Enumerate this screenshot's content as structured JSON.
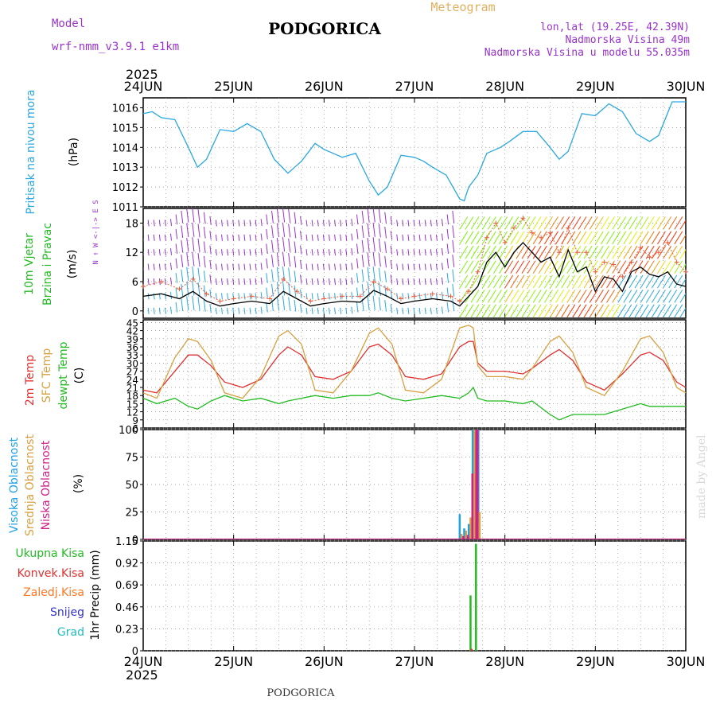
{
  "header": {
    "model_label": "Model",
    "model_name": "wrf-nmm_v3.9.1  e1km",
    "title": "PODGORICA",
    "meteogram": "Meteogram",
    "lonlat": "lon,lat (19.25E, 42.39N)",
    "elevation": "Nadmorska Visina 49m",
    "model_elevation": "Nadmorska Visina u modelu 55.035m",
    "year_top": "2025",
    "year_bottom": "2025",
    "footer": "PODGORICA",
    "watermark": "made by Angel"
  },
  "colors": {
    "pressure": "#2aa8e0",
    "wind_label": "#22bb22",
    "purple": "#9933cc",
    "t2m": "#e03030",
    "tsfc": "#d8a040",
    "dewpt": "#22bb22",
    "high_cloud": "#1fa0e8",
    "mid_cloud": "#d8a040",
    "low_cloud": "#cc2288",
    "total_rain": "#22bb22",
    "conv_rain": "#e03030",
    "frz_rain": "#ff7722",
    "snow": "#3333cc",
    "hail": "#22bbbb",
    "header_purple": "#9933cc",
    "header_gold": "#e0b060"
  },
  "chart_data": [
    {
      "type": "line",
      "id": "pressure",
      "ylabel_lines": [
        "Pritisak na nivou mora",
        "(hPa)"
      ],
      "x_tick_labels": [
        "24JUN",
        "25JUN",
        "26JUN",
        "27JUN",
        "28JUN",
        "29JUN",
        "30JUN"
      ],
      "ylim": [
        1011,
        1016.5
      ],
      "yticks": [
        1011,
        1012,
        1013,
        1014,
        1015,
        1016
      ],
      "grid": true,
      "series": [
        {
          "x": [
            0,
            0.1,
            0.2,
            0.35,
            0.5,
            0.6,
            0.7,
            0.85,
            1.0,
            1.15,
            1.3,
            1.45,
            1.6,
            1.75,
            1.9,
            2.0,
            2.1,
            2.2,
            2.35,
            2.5,
            2.6,
            2.7,
            2.85,
            3.0,
            3.1,
            3.2,
            3.35,
            3.5,
            3.55,
            3.6,
            3.7,
            3.8,
            3.95,
            4.05,
            4.2,
            4.35,
            4.5,
            4.6,
            4.7,
            4.85,
            5.0,
            5.15,
            5.3,
            5.45,
            5.6,
            5.7,
            5.85,
            6.0
          ],
          "y": [
            1015.7,
            1015.8,
            1015.5,
            1015.4,
            1014.0,
            1013.0,
            1013.4,
            1014.9,
            1014.8,
            1015.2,
            1014.8,
            1013.4,
            1012.7,
            1013.3,
            1014.2,
            1013.9,
            1013.7,
            1013.5,
            1013.7,
            1012.3,
            1011.6,
            1012.0,
            1013.6,
            1013.5,
            1013.3,
            1013.0,
            1012.6,
            1011.4,
            1011.3,
            1012.0,
            1012.6,
            1013.7,
            1014.0,
            1014.3,
            1014.8,
            1014.8,
            1014.0,
            1013.4,
            1013.8,
            1015.7,
            1015.6,
            1016.2,
            1015.8,
            1014.7,
            1014.3,
            1014.6,
            1016.3,
            1016.3
          ]
        }
      ]
    },
    {
      "type": "line",
      "id": "wind",
      "ylabel_lines": [
        "10m Vjetar",
        "Brzina i Pravac",
        "(m/s)"
      ],
      "compass": "N ↑  W <-|-> E  S",
      "ylim": [
        -1.5,
        21
      ],
      "yticks": [
        0,
        6,
        12,
        18
      ],
      "grid": true,
      "series": [
        {
          "name": "speed",
          "x": [
            0,
            0.2,
            0.4,
            0.55,
            0.7,
            0.85,
            1.0,
            1.2,
            1.4,
            1.55,
            1.7,
            1.85,
            2.0,
            2.2,
            2.4,
            2.55,
            2.7,
            2.85,
            3.0,
            3.2,
            3.4,
            3.5,
            3.6,
            3.7,
            3.8,
            3.9,
            4.0,
            4.1,
            4.2,
            4.3,
            4.4,
            4.5,
            4.6,
            4.7,
            4.8,
            4.9,
            5.0,
            5.1,
            5.2,
            5.3,
            5.4,
            5.5,
            5.6,
            5.7,
            5.8,
            5.9,
            6.0
          ],
          "y": [
            3.0,
            3.5,
            2.5,
            4.0,
            2.0,
            1.0,
            1.5,
            2.0,
            1.5,
            4.0,
            2.5,
            1.0,
            1.5,
            2.0,
            1.8,
            4.2,
            3.0,
            1.5,
            2.0,
            2.5,
            2.0,
            1.0,
            3.0,
            5.0,
            10.0,
            12.0,
            9.0,
            12.0,
            14.0,
            12.0,
            10.0,
            11.0,
            7.0,
            12.5,
            8.0,
            9.0,
            4.0,
            7.0,
            6.5,
            4.0,
            8.0,
            9.0,
            7.5,
            7.0,
            8.0,
            5.5,
            5.0
          ]
        },
        {
          "name": "gust",
          "x": [
            0,
            0.2,
            0.4,
            0.55,
            0.7,
            0.85,
            1.0,
            1.2,
            1.4,
            1.55,
            1.7,
            1.85,
            2.0,
            2.2,
            2.4,
            2.55,
            2.7,
            2.85,
            3.0,
            3.2,
            3.4,
            3.5,
            3.6,
            3.7,
            3.8,
            3.9,
            4.0,
            4.1,
            4.2,
            4.3,
            4.4,
            4.5,
            4.6,
            4.7,
            4.8,
            4.9,
            5.0,
            5.1,
            5.2,
            5.3,
            5.4,
            5.5,
            5.6,
            5.7,
            5.8,
            5.9,
            6.0
          ],
          "y": [
            5.0,
            6.0,
            4.5,
            6.5,
            3.5,
            2.0,
            2.5,
            3.0,
            2.5,
            6.5,
            4.0,
            2.0,
            2.5,
            3.0,
            3.0,
            6.0,
            4.5,
            2.5,
            3.0,
            3.5,
            3.0,
            2.0,
            4.0,
            8.0,
            15.0,
            18.0,
            14.0,
            17.0,
            19.0,
            16.0,
            15.0,
            16.0,
            12.0,
            17.0,
            12.0,
            12.0,
            8.0,
            10.0,
            9.5,
            7.0,
            10.0,
            13.0,
            11.0,
            12.0,
            14.0,
            10.0,
            8.0
          ]
        }
      ]
    },
    {
      "type": "line",
      "id": "temperature",
      "ylabel_lines": [
        "2m Temp",
        "SFC Temp",
        "dewpt Temp",
        "(C)"
      ],
      "ylim": [
        6,
        46
      ],
      "yticks": [
        6,
        9,
        12,
        15,
        18,
        21,
        24,
        27,
        30,
        33,
        36,
        39,
        42,
        45
      ],
      "grid": true,
      "series": [
        {
          "name": "2m Temp",
          "x": [
            0,
            0.15,
            0.35,
            0.5,
            0.6,
            0.75,
            0.9,
            1.1,
            1.3,
            1.5,
            1.6,
            1.75,
            1.9,
            2.1,
            2.3,
            2.5,
            2.6,
            2.75,
            2.9,
            3.1,
            3.3,
            3.5,
            3.6,
            3.65,
            3.7,
            3.8,
            4.0,
            4.2,
            4.3,
            4.5,
            4.6,
            4.75,
            4.9,
            5.1,
            5.3,
            5.5,
            5.6,
            5.75,
            5.9,
            6.0
          ],
          "y": [
            20,
            19,
            27,
            33,
            33,
            29,
            23,
            21,
            24,
            33,
            36,
            33,
            25,
            24,
            27,
            36,
            37,
            33,
            25,
            24,
            26,
            36,
            38,
            38,
            30,
            27,
            27,
            26,
            28,
            33,
            35,
            31,
            23,
            20,
            26,
            33,
            34,
            31,
            23,
            21
          ]
        },
        {
          "name": "SFC Temp",
          "x": [
            0,
            0.15,
            0.35,
            0.5,
            0.6,
            0.75,
            0.9,
            1.1,
            1.3,
            1.5,
            1.6,
            1.75,
            1.9,
            2.1,
            2.3,
            2.5,
            2.6,
            2.75,
            2.9,
            3.1,
            3.3,
            3.5,
            3.6,
            3.65,
            3.7,
            3.8,
            4.0,
            4.2,
            4.3,
            4.5,
            4.6,
            4.75,
            4.9,
            5.1,
            5.3,
            5.5,
            5.6,
            5.75,
            5.9,
            6.0
          ],
          "y": [
            19,
            17,
            32,
            39,
            38,
            31,
            19,
            17,
            25,
            40,
            42,
            37,
            20,
            19,
            27,
            41,
            43,
            37,
            20,
            19,
            24,
            43,
            44,
            43,
            29,
            25,
            25,
            24,
            28,
            38,
            40,
            34,
            21,
            18,
            27,
            39,
            40,
            34,
            21,
            19
          ]
        },
        {
          "name": "dewpt Temp",
          "x": [
            0,
            0.15,
            0.35,
            0.5,
            0.6,
            0.75,
            0.9,
            1.1,
            1.3,
            1.5,
            1.6,
            1.75,
            1.9,
            2.1,
            2.3,
            2.5,
            2.6,
            2.75,
            2.9,
            3.1,
            3.3,
            3.5,
            3.6,
            3.65,
            3.7,
            3.8,
            4.0,
            4.2,
            4.3,
            4.5,
            4.6,
            4.75,
            4.9,
            5.1,
            5.3,
            5.5,
            5.6,
            5.75,
            5.9,
            6.0
          ],
          "y": [
            17,
            15,
            17,
            14,
            13,
            16,
            18,
            16,
            17,
            15,
            16,
            17,
            18,
            17,
            18,
            18,
            19,
            17,
            16,
            17,
            18,
            17,
            19,
            21,
            17,
            16,
            16,
            15,
            16,
            11,
            9,
            11,
            11,
            11,
            13,
            15,
            14,
            14,
            14,
            14
          ]
        }
      ]
    },
    {
      "type": "bar",
      "id": "clouds",
      "ylabel_lines": [
        "Visoka Oblacnost",
        "Srednja Oblacnost",
        "Niska Oblacnost",
        "(%)"
      ],
      "ylim": [
        0,
        100
      ],
      "yticks": [
        0,
        25,
        50,
        75,
        100
      ],
      "grid": true,
      "series": [
        {
          "name": "Visoka Oblacnost",
          "x": [
            3.5,
            3.55,
            3.6,
            3.65,
            3.7
          ],
          "values": [
            23,
            10,
            14,
            100,
            100
          ]
        },
        {
          "name": "Srednja Oblacnost",
          "x": [
            3.52,
            3.57,
            3.62,
            3.67,
            3.72
          ],
          "values": [
            5,
            8,
            20,
            100,
            25
          ]
        },
        {
          "name": "Niska Oblacnost",
          "x": [
            3.54,
            3.59,
            3.64,
            3.69
          ],
          "values": [
            3,
            4,
            60,
            100
          ]
        }
      ]
    },
    {
      "type": "bar",
      "id": "precip",
      "ylabel_lines": [
        "1hr Precip (mm)"
      ],
      "legend": [
        "Ukupna Kisa",
        "Konvek.Kisa",
        "Zaledj.Kisa",
        "Snijeg",
        "Grad"
      ],
      "ylim": [
        0,
        1.15
      ],
      "yticks": [
        0,
        0.23,
        0.46,
        0.69,
        0.92,
        1.15
      ],
      "ytick_labels": [
        "0",
        "0.23",
        "0.46",
        "0.69",
        "0.92",
        "1.15"
      ],
      "grid": true,
      "series": [
        {
          "name": "Ukupna Kisa",
          "x": [
            3.62,
            3.68
          ],
          "values": [
            0.58,
            1.12
          ]
        },
        {
          "name": "Konvek.Kisa",
          "x": [
            3.63
          ],
          "values": [
            0.02
          ]
        }
      ]
    }
  ]
}
